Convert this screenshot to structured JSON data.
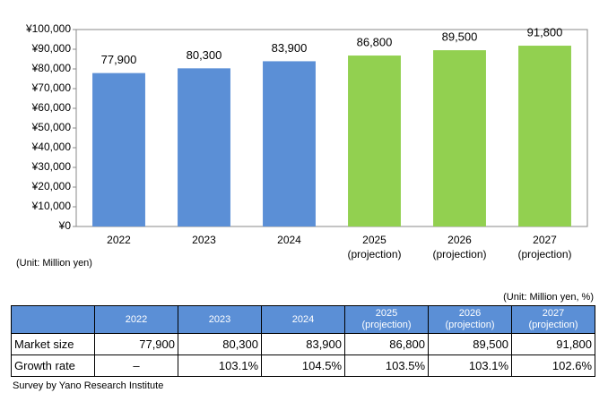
{
  "chart_data": {
    "type": "bar",
    "categories": [
      "2022",
      "2023",
      "2024",
      "2025\n(projection)",
      "2026\n(projection)",
      "2027\n(projection)"
    ],
    "values": [
      77900,
      80300,
      83900,
      86800,
      89500,
      91800
    ],
    "value_labels": [
      "77,900",
      "80,300",
      "83,900",
      "86,800",
      "89,500",
      "91,800"
    ],
    "colors": [
      "#5b8fd6",
      "#5b8fd6",
      "#5b8fd6",
      "#92d050",
      "#92d050",
      "#92d050"
    ],
    "ylim": [
      0,
      100000
    ],
    "yticks": [
      {
        "value": 0,
        "label": "¥0"
      },
      {
        "value": 10000,
        "label": "¥10,000"
      },
      {
        "value": 20000,
        "label": "¥20,000"
      },
      {
        "value": 30000,
        "label": "¥30,000"
      },
      {
        "value": 40000,
        "label": "¥40,000"
      },
      {
        "value": 50000,
        "label": "¥50,000"
      },
      {
        "value": 60000,
        "label": "¥60,000"
      },
      {
        "value": 70000,
        "label": "¥70,000"
      },
      {
        "value": 80000,
        "label": "¥80,000"
      },
      {
        "value": 90000,
        "label": "¥90,000"
      },
      {
        "value": 100000,
        "label": "¥100,000"
      }
    ],
    "grid": false,
    "unit_note": "(Unit: Million yen)"
  },
  "table": {
    "unit": "(Unit: Million yen, %)",
    "columns": [
      "2022",
      "2023",
      "2024",
      "2025\n(projection)",
      "2026\n(projection)",
      "2027\n(projection)"
    ],
    "rows": [
      {
        "label": "Market size",
        "cells": [
          "77,900",
          "80,300",
          "83,900",
          "86,800",
          "89,500",
          "91,800"
        ]
      },
      {
        "label": "Growth rate",
        "cells": [
          "–",
          "103.1%",
          "104.5%",
          "103.5%",
          "103.1%",
          "102.6%"
        ]
      }
    ]
  },
  "source": "Survey by Yano Research Institute"
}
